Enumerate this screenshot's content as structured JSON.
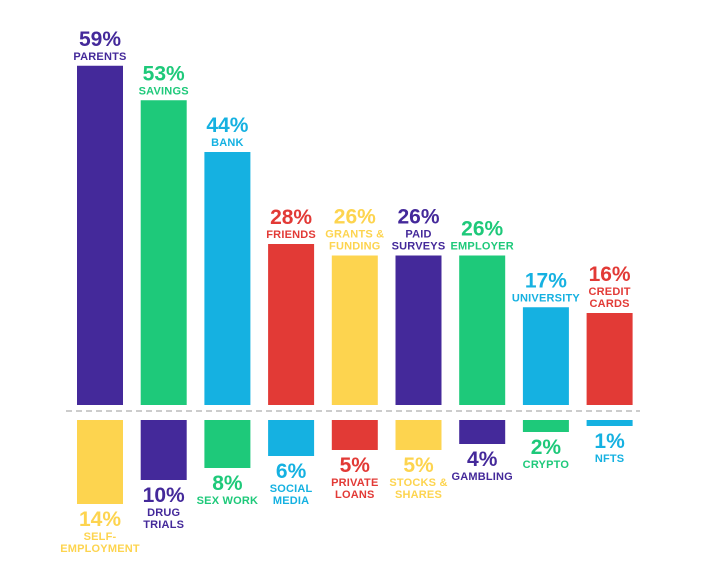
{
  "chart_data": {
    "type": "bar",
    "ylim": [
      -15,
      60
    ],
    "grid": false,
    "legend": "none",
    "baseline_style": "dashed",
    "top_row": {
      "values": [
        "59%",
        "53%",
        "44%",
        "28%",
        "26%",
        "26%",
        "26%",
        "17%",
        "16%"
      ],
      "numbers": [
        59,
        53,
        44,
        28,
        26,
        26,
        26,
        17,
        16
      ],
      "labels": [
        [
          "PARENTS"
        ],
        [
          "SAVINGS"
        ],
        [
          "BANK"
        ],
        [
          "FRIENDS"
        ],
        [
          "GRANTS &",
          "FUNDING"
        ],
        [
          "PAID",
          "SURVEYS"
        ],
        [
          "EMPLOYER"
        ],
        [
          "UNIVERSITY"
        ],
        [
          "CREDIT",
          "CARDS"
        ]
      ],
      "colors": [
        "#44299a",
        "#1ec97a",
        "#15b1e1",
        "#e23a36",
        "#fdd44f",
        "#44299a",
        "#1ec97a",
        "#15b1e1",
        "#e23a36"
      ]
    },
    "bottom_row": {
      "values": [
        "14%",
        "10%",
        "8%",
        "6%",
        "5%",
        "5%",
        "4%",
        "2%",
        "1%"
      ],
      "numbers": [
        14,
        10,
        8,
        6,
        5,
        5,
        4,
        2,
        1
      ],
      "labels": [
        [
          "SELF-",
          "EMPLOYMENT"
        ],
        [
          "DRUG",
          "TRIALS"
        ],
        [
          "SEX WORK"
        ],
        [
          "SOCIAL",
          "MEDIA"
        ],
        [
          "PRIVATE",
          "LOANS"
        ],
        [
          "STOCKS &",
          "SHARES"
        ],
        [
          "GAMBLING"
        ],
        [
          "CRYPTO"
        ],
        [
          "NFTS"
        ]
      ],
      "colors": [
        "#fdd44f",
        "#44299a",
        "#1ec97a",
        "#15b1e1",
        "#e23a36",
        "#fdd44f",
        "#44299a",
        "#1ec97a",
        "#15b1e1"
      ]
    },
    "colors": {
      "purple": "#44299a",
      "green": "#1ec97a",
      "blue": "#15b1e1",
      "red": "#e23a36",
      "yellow": "#fdd44f",
      "baseline": "#cccccc"
    }
  }
}
